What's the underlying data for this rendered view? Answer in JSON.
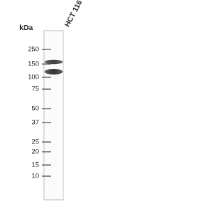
{
  "lane_label": "HCT 116",
  "unit_label": "kDa",
  "markers": [
    "250",
    "150",
    "100",
    "75",
    "50",
    "37",
    "25",
    "20",
    "15",
    "10"
  ]
}
